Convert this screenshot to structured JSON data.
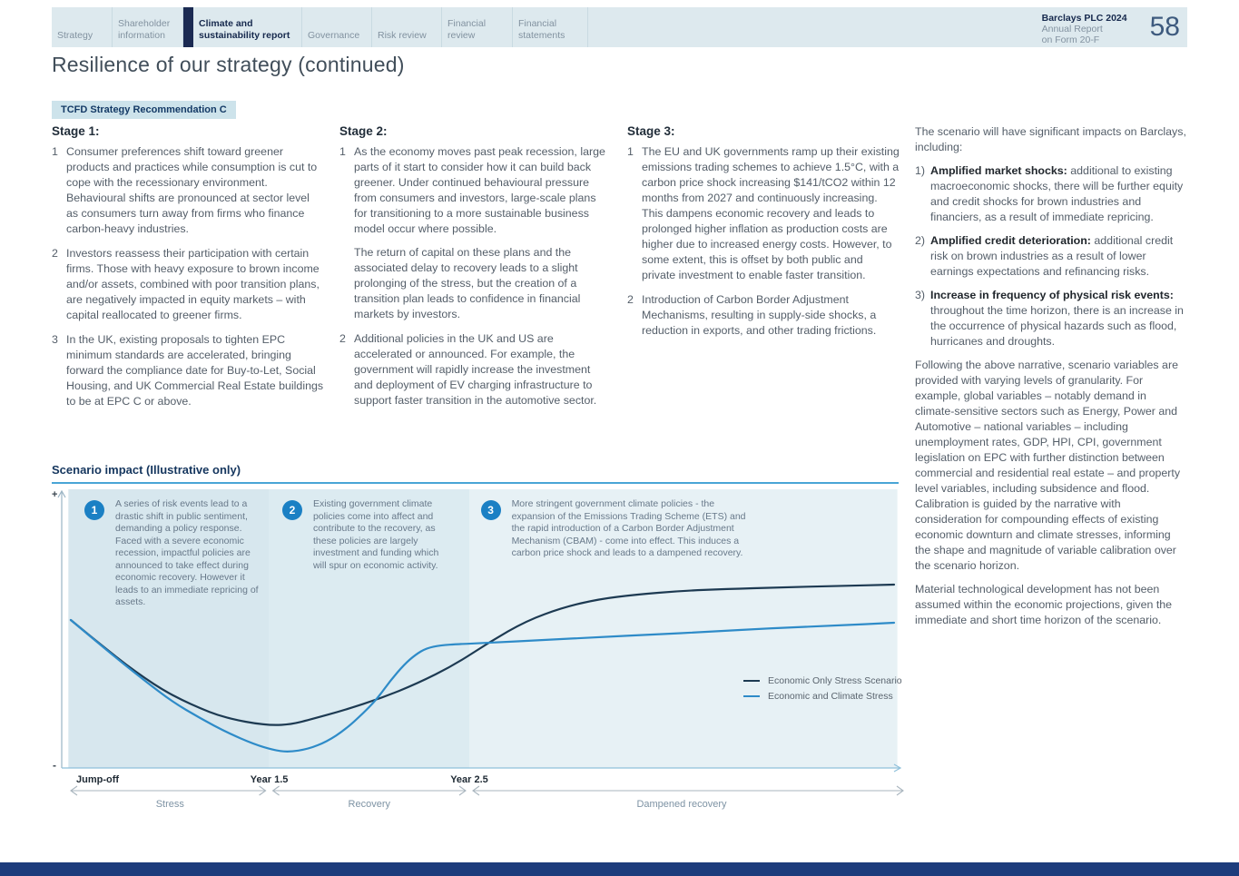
{
  "header": {
    "tabs": [
      {
        "label": "Strategy"
      },
      {
        "label": "Shareholder information"
      },
      {
        "label": "Climate and sustainability report",
        "active": true
      },
      {
        "label": "Governance"
      },
      {
        "label": "Risk review"
      },
      {
        "label": "Financial review"
      },
      {
        "label": "Financial statements"
      }
    ],
    "brand": {
      "line1": "Barclays PLC 2024",
      "line2": "Annual Report",
      "line3": "on Form 20-F"
    },
    "page_number": "58"
  },
  "page_title": "Resilience of our strategy (continued)",
  "badge": "TCFD Strategy Recommendation C",
  "stages": [
    {
      "heading": "Stage 1:",
      "items": [
        {
          "num": "1",
          "paras": [
            "Consumer preferences shift toward greener products and practices while consumption is cut to cope with the recessionary environment. Behavioural shifts are pronounced at sector level as consumers turn away from firms who finance carbon-heavy industries."
          ]
        },
        {
          "num": "2",
          "paras": [
            "Investors reassess their participation with certain firms. Those with heavy exposure to brown income and/or assets, combined with poor transition plans, are negatively impacted in equity markets – with capital reallocated to greener firms."
          ]
        },
        {
          "num": "3",
          "paras": [
            "In the UK, existing proposals to tighten EPC minimum standards are accelerated, bringing forward the compliance date for Buy-to-Let, Social Housing, and UK Commercial Real Estate buildings to be at EPC C or above."
          ]
        }
      ]
    },
    {
      "heading": "Stage 2:",
      "items": [
        {
          "num": "1",
          "paras": [
            "As the economy moves past peak recession, large parts of it start to consider how it can build back greener. Under continued behavioural pressure from consumers and investors, large-scale plans for transitioning to a more sustainable business model occur where possible.",
            "The return of capital on these plans and the associated delay to recovery leads to a slight prolonging of the stress, but the creation of a transition plan leads to confidence in financial markets by investors."
          ]
        },
        {
          "num": "2",
          "paras": [
            "Additional policies in the UK and US are accelerated or announced. For example, the government will rapidly increase the investment and deployment of EV charging infrastructure to support faster transition in the automotive sector."
          ]
        }
      ]
    },
    {
      "heading": "Stage 3:",
      "items": [
        {
          "num": "1",
          "paras": [
            "The EU and UK governments ramp up their existing emissions trading schemes to achieve 1.5°C, with a carbon price shock increasing $141/tCO2 within 12 months from 2027 and continuously increasing. This dampens economic recovery and leads to prolonged higher inflation as production costs are higher due to increased energy costs. However, to some extent, this is offset by both public and private investment to enable faster transition."
          ]
        },
        {
          "num": "2",
          "paras": [
            "Introduction of Carbon Border Adjustment Mechanisms, resulting in supply-side shocks, a reduction in exports, and other trading frictions."
          ]
        }
      ]
    }
  ],
  "impacts": {
    "intro": "The scenario will have significant impacts on Barclays, including:",
    "items": [
      {
        "num": "1)",
        "bold": "Amplified market shocks:",
        "text": "additional to existing macroeconomic shocks, there will be further equity and credit shocks for brown industries and financiers, as a result of immediate repricing."
      },
      {
        "num": "2)",
        "bold": "Amplified credit deterioration:",
        "text": "additional credit risk on brown industries as a result of lower earnings expectations and refinancing risks."
      },
      {
        "num": "3)",
        "bold": "Increase in frequency of physical risk events:",
        "text": "throughout the time horizon, there is an increase in the occurrence of physical hazards such as flood, hurricanes and droughts."
      }
    ],
    "paras": [
      "Following the above narrative, scenario variables are provided with varying levels of granularity. For example, global variables – notably demand in climate-sensitive sectors such as Energy, Power and Automotive – national variables – including unemployment rates, GDP, HPI, CPI, government legislation on EPC with further distinction between commercial and residential real estate – and property level variables, including subsidence and flood. Calibration is guided by the narrative with consideration for compounding effects of existing economic downturn and climate stresses, informing the shape and magnitude of variable calibration over the scenario horizon.",
      "Material technological development has not been assumed within the economic projections, given the immediate and short time horizon of the scenario."
    ]
  },
  "chart_data": {
    "type": "line",
    "title": "Scenario impact (Illustrative only)",
    "y_axis": {
      "top_label": "+",
      "bottom_label": "-"
    },
    "x_ticks": [
      {
        "label": "Jump-off",
        "pos": 0
      },
      {
        "label": "Year 1.5",
        "pos": 0.241
      },
      {
        "label": "Year 2.5",
        "pos": 0.484
      }
    ],
    "phases": [
      {
        "label": "Stress",
        "from": 0,
        "to": 0.241
      },
      {
        "label": "Recovery",
        "from": 0.241,
        "to": 0.484
      },
      {
        "label": "Dampened recovery",
        "from": 0.484,
        "to": 1
      }
    ],
    "regions": [
      {
        "from": -0.003,
        "to": 0.241,
        "color": "#d7e7ee"
      },
      {
        "from": 0.241,
        "to": 0.484,
        "color": "#dcebf1"
      },
      {
        "from": 0.484,
        "to": 1.004,
        "color": "#e7f1f5"
      }
    ],
    "ylim": [
      -1,
      1
    ],
    "grid": false,
    "legend_position": "right-middle",
    "series": [
      {
        "name": "Economic Only Stress Scenario",
        "color": "#1d3a52",
        "points": [
          [
            0,
            0.045
          ],
          [
            0.024,
            -0.071
          ],
          [
            0.046,
            -0.174
          ],
          [
            0.068,
            -0.277
          ],
          [
            0.09,
            -0.368
          ],
          [
            0.112,
            -0.452
          ],
          [
            0.135,
            -0.523
          ],
          [
            0.157,
            -0.581
          ],
          [
            0.179,
            -0.632
          ],
          [
            0.201,
            -0.665
          ],
          [
            0.223,
            -0.69
          ],
          [
            0.245,
            -0.703
          ],
          [
            0.267,
            -0.697
          ],
          [
            0.289,
            -0.665
          ],
          [
            0.333,
            -0.594
          ],
          [
            0.377,
            -0.51
          ],
          [
            0.421,
            -0.406
          ],
          [
            0.465,
            -0.277
          ],
          [
            0.509,
            -0.11
          ],
          [
            0.553,
            0.039
          ],
          [
            0.598,
            0.135
          ],
          [
            0.642,
            0.194
          ],
          [
            0.686,
            0.226
          ],
          [
            0.741,
            0.252
          ],
          [
            0.796,
            0.265
          ],
          [
            0.862,
            0.277
          ],
          [
            0.928,
            0.287
          ],
          [
            1,
            0.297
          ]
        ]
      },
      {
        "name": "Economic and Climate Stress",
        "color": "#2e8bc8",
        "points": [
          [
            0,
            0.045
          ],
          [
            0.046,
            -0.181
          ],
          [
            0.09,
            -0.387
          ],
          [
            0.123,
            -0.535
          ],
          [
            0.157,
            -0.652
          ],
          [
            0.19,
            -0.755
          ],
          [
            0.223,
            -0.839
          ],
          [
            0.245,
            -0.877
          ],
          [
            0.264,
            -0.894
          ],
          [
            0.289,
            -0.871
          ],
          [
            0.311,
            -0.819
          ],
          [
            0.333,
            -0.735
          ],
          [
            0.355,
            -0.619
          ],
          [
            0.372,
            -0.516
          ],
          [
            0.388,
            -0.387
          ],
          [
            0.405,
            -0.271
          ],
          [
            0.419,
            -0.2
          ],
          [
            0.432,
            -0.155
          ],
          [
            0.449,
            -0.135
          ],
          [
            0.471,
            -0.126
          ],
          [
            0.509,
            -0.116
          ],
          [
            0.576,
            -0.097
          ],
          [
            0.642,
            -0.077
          ],
          [
            0.708,
            -0.058
          ],
          [
            0.774,
            -0.039
          ],
          [
            0.851,
            -0.013
          ],
          [
            0.928,
            0.006
          ],
          [
            1,
            0.026
          ]
        ]
      }
    ],
    "annotations": [
      {
        "num": "1",
        "pos": 0.0287,
        "text": "A series of risk events lead to a drastic shift in public sentiment, demanding a policy response. Faced with a severe economic recession, impactful policies are announced to take effect during economic recovery. However it leads to an immediate repricing of assets."
      },
      {
        "num": "2",
        "pos": 0.269,
        "text": "Existing government climate policies come into affect and contribute to the recovery, as these policies are largely investment and funding which will spur on economic activity."
      },
      {
        "num": "3",
        "pos": 0.51,
        "text": "More stringent government climate policies - the expansion of the Emissions Trading Scheme (ETS) and the rapid introduction of a Carbon Border Adjustment Mechanism (CBAM) - come into effect. This induces a carbon price shock and leads to a dampened recovery."
      }
    ]
  }
}
